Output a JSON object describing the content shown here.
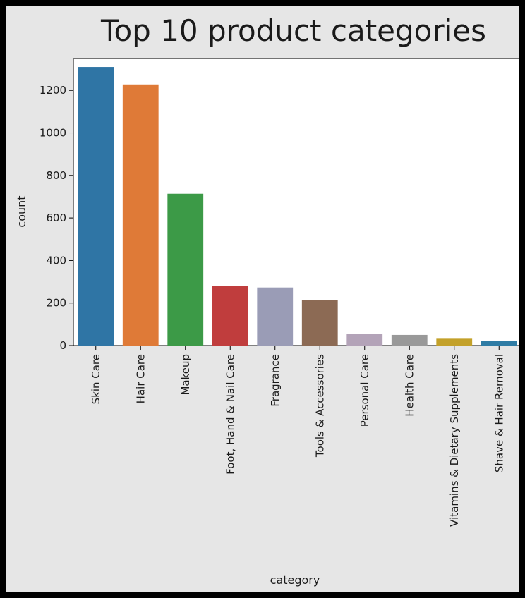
{
  "chart_data": {
    "type": "bar",
    "title": "Top 10 product categories",
    "xlabel": "category",
    "ylabel": "count",
    "ylim": [
      0,
      1350
    ],
    "yticks": [
      "0",
      "200",
      "400",
      "600",
      "800",
      "1000",
      "1200"
    ],
    "categories": [
      "Skin Care",
      "Hair Care",
      "Makeup",
      "Foot, Hand & Nail Care",
      "Fragrance",
      "Tools & Accessories",
      "Personal Care",
      "Health Care",
      "Vitamins & Dietary Supplements",
      "Shave & Hair Removal"
    ],
    "values": [
      1310,
      1228,
      714,
      279,
      273,
      214,
      56,
      50,
      32,
      23
    ],
    "colors": [
      "#2f75a5",
      "#df7a37",
      "#3c9a47",
      "#c03d3d",
      "#9a9cb6",
      "#8c6a54",
      "#b3a3b8",
      "#999999",
      "#c3a12a",
      "#2f7ca5"
    ],
    "grid": false,
    "legend": "none"
  }
}
